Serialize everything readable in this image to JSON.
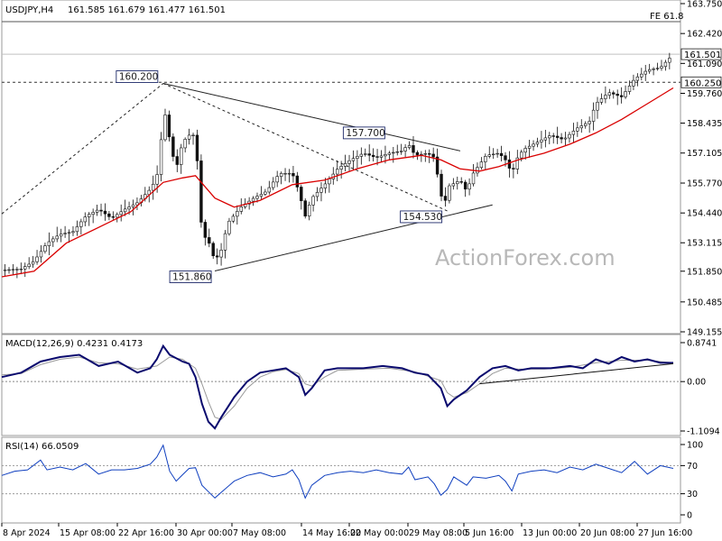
{
  "header": {
    "symbol": "USDJPY,H4",
    "ohlc": "161.585 161.679 161.477 161.501"
  },
  "watermark": "ActionForex.com",
  "chart_data": [
    {
      "type": "candlestick",
      "panel": "price",
      "ylim": [
        149.155,
        163.75
      ],
      "y_ticks": [
        "163.750",
        "162.420",
        "161.090",
        "159.760",
        "158.435",
        "157.105",
        "155.770",
        "154.440",
        "153.115",
        "151.850",
        "150.485",
        "149.155"
      ],
      "x_tick_labels": [
        "8 Apr 2024",
        "15 Apr 08:00",
        "22 Apr 16:00",
        "30 Apr 00:00",
        "7 May 08:00",
        "14 May 16:00",
        "22 May 00:00",
        "29 May 08:00",
        "5 Jun 16:00",
        "13 Jun 00:00",
        "20 Jun 08:00",
        "27 Jun 16:00"
      ],
      "last_price": "161.501",
      "fe_label": "FE 61.8",
      "fe_level": 162.95,
      "horizontal_level": {
        "label": "160.250",
        "value": 160.25
      },
      "point_annotations": [
        {
          "label": "160.200",
          "value": 160.2
        },
        {
          "label": "151.860",
          "value": 151.86
        },
        {
          "label": "157.700",
          "value": 157.7
        },
        {
          "label": "154.530",
          "value": 154.53
        }
      ],
      "close_path": [
        [
          0,
          151.9
        ],
        [
          3,
          151.95
        ],
        [
          5,
          152.3
        ],
        [
          7,
          153.1
        ],
        [
          9,
          153.5
        ],
        [
          11,
          153.6
        ],
        [
          13,
          154.3
        ],
        [
          15,
          154.6
        ],
        [
          17,
          154.2
        ],
        [
          19,
          154.6
        ],
        [
          21,
          154.9
        ],
        [
          23,
          155.5
        ],
        [
          24,
          156.0
        ],
        [
          25,
          158.5
        ],
        [
          25.5,
          159.0
        ],
        [
          26,
          157.6
        ],
        [
          27,
          156.4
        ],
        [
          28,
          157.6
        ],
        [
          29,
          157.9
        ],
        [
          30,
          157.9
        ],
        [
          31,
          153.5
        ],
        [
          32,
          153.2
        ],
        [
          33,
          152.3
        ],
        [
          34,
          152.8
        ],
        [
          35,
          154.0
        ],
        [
          37,
          154.7
        ],
        [
          39,
          155.1
        ],
        [
          41,
          155.4
        ],
        [
          43,
          156.2
        ],
        [
          45,
          156.2
        ],
        [
          46,
          155.4
        ],
        [
          47,
          154.3
        ],
        [
          48,
          155.1
        ],
        [
          50,
          155.7
        ],
        [
          52,
          156.4
        ],
        [
          54,
          156.8
        ],
        [
          56,
          157.1
        ],
        [
          58,
          156.9
        ],
        [
          60,
          157.1
        ],
        [
          62,
          157.2
        ],
        [
          63,
          157.5
        ],
        [
          64,
          157.0
        ],
        [
          66,
          157.1
        ],
        [
          67,
          156.9
        ],
        [
          68,
          155.3
        ],
        [
          68.5,
          154.6
        ],
        [
          69,
          155.6
        ],
        [
          71,
          155.9
        ],
        [
          72,
          155.4
        ],
        [
          73,
          156.2
        ],
        [
          75,
          157.0
        ],
        [
          77,
          157.1
        ],
        [
          78,
          156.8
        ],
        [
          79,
          156.2
        ],
        [
          80,
          157.0
        ],
        [
          81,
          157.3
        ],
        [
          83,
          157.6
        ],
        [
          85,
          157.9
        ],
        [
          87,
          157.7
        ],
        [
          89,
          158.2
        ],
        [
          91,
          158.5
        ],
        [
          92,
          159.3
        ],
        [
          94,
          159.8
        ],
        [
          96,
          159.6
        ],
        [
          98,
          160.4
        ],
        [
          100,
          160.8
        ],
        [
          102,
          160.9
        ],
        [
          103,
          161.2
        ],
        [
          104,
          161.5
        ]
      ],
      "ma_path": [
        [
          0,
          151.6
        ],
        [
          5,
          151.85
        ],
        [
          10,
          153.1
        ],
        [
          15,
          153.8
        ],
        [
          20,
          154.5
        ],
        [
          25,
          155.8
        ],
        [
          28,
          156.0
        ],
        [
          30,
          156.1
        ],
        [
          33,
          155.1
        ],
        [
          36,
          154.7
        ],
        [
          40,
          155.0
        ],
        [
          45,
          155.7
        ],
        [
          50,
          155.9
        ],
        [
          55,
          156.4
        ],
        [
          60,
          156.8
        ],
        [
          65,
          157.0
        ],
        [
          68,
          156.8
        ],
        [
          71,
          156.4
        ],
        [
          74,
          156.3
        ],
        [
          77,
          156.5
        ],
        [
          80,
          156.8
        ],
        [
          84,
          157.1
        ],
        [
          88,
          157.5
        ],
        [
          92,
          158.0
        ],
        [
          96,
          158.6
        ],
        [
          100,
          159.3
        ],
        [
          104,
          160.0
        ]
      ],
      "trendlines": [
        {
          "from": [
            25,
            160.2
          ],
          "to": [
            71,
            157.2
          ],
          "style": "solid"
        },
        {
          "from": [
            33,
            151.86
          ],
          "to": [
            76,
            154.8
          ],
          "style": "solid"
        },
        {
          "from": [
            0,
            154.4
          ],
          "to": [
            25,
            160.2
          ],
          "style": "dashed"
        },
        {
          "from": [
            25,
            160.2
          ],
          "to": [
            69,
            154.53
          ],
          "style": "dashed"
        }
      ]
    },
    {
      "type": "line",
      "panel": "macd",
      "label": "MACD(12,26,9) 0.4231 0.4173",
      "ylim": [
        -1.1094,
        0.8741
      ],
      "y_ticks": [
        "0.8741",
        "0.00",
        "-1.1094"
      ],
      "main_path": [
        [
          0,
          0.1
        ],
        [
          3,
          0.2
        ],
        [
          6,
          0.45
        ],
        [
          9,
          0.55
        ],
        [
          12,
          0.6
        ],
        [
          15,
          0.35
        ],
        [
          18,
          0.45
        ],
        [
          21,
          0.2
        ],
        [
          23,
          0.3
        ],
        [
          24,
          0.5
        ],
        [
          25,
          0.8
        ],
        [
          26,
          0.6
        ],
        [
          28,
          0.45
        ],
        [
          29,
          0.4
        ],
        [
          30,
          0.1
        ],
        [
          31,
          -0.5
        ],
        [
          32,
          -0.9
        ],
        [
          33,
          -1.05
        ],
        [
          34,
          -0.8
        ],
        [
          36,
          -0.35
        ],
        [
          38,
          0.0
        ],
        [
          40,
          0.2
        ],
        [
          42,
          0.25
        ],
        [
          44,
          0.3
        ],
        [
          46,
          0.1
        ],
        [
          47,
          -0.3
        ],
        [
          48,
          -0.15
        ],
        [
          50,
          0.25
        ],
        [
          52,
          0.3
        ],
        [
          56,
          0.3
        ],
        [
          59,
          0.35
        ],
        [
          62,
          0.3
        ],
        [
          64,
          0.2
        ],
        [
          66,
          0.15
        ],
        [
          68,
          -0.15
        ],
        [
          69,
          -0.55
        ],
        [
          70,
          -0.4
        ],
        [
          72,
          -0.2
        ],
        [
          74,
          0.1
        ],
        [
          76,
          0.3
        ],
        [
          78,
          0.35
        ],
        [
          80,
          0.25
        ],
        [
          82,
          0.3
        ],
        [
          85,
          0.3
        ],
        [
          88,
          0.35
        ],
        [
          90,
          0.3
        ],
        [
          92,
          0.5
        ],
        [
          94,
          0.4
        ],
        [
          96,
          0.55
        ],
        [
          98,
          0.45
        ],
        [
          100,
          0.5
        ],
        [
          102,
          0.42
        ],
        [
          104,
          0.42
        ]
      ],
      "signal_path": [
        [
          0,
          0.15
        ],
        [
          3,
          0.18
        ],
        [
          6,
          0.38
        ],
        [
          9,
          0.5
        ],
        [
          12,
          0.55
        ],
        [
          15,
          0.42
        ],
        [
          18,
          0.4
        ],
        [
          21,
          0.28
        ],
        [
          24,
          0.35
        ],
        [
          26,
          0.55
        ],
        [
          28,
          0.5
        ],
        [
          30,
          0.3
        ],
        [
          31,
          -0.05
        ],
        [
          32,
          -0.45
        ],
        [
          33,
          -0.8
        ],
        [
          34,
          -0.85
        ],
        [
          36,
          -0.55
        ],
        [
          38,
          -0.15
        ],
        [
          40,
          0.1
        ],
        [
          42,
          0.22
        ],
        [
          44,
          0.27
        ],
        [
          46,
          0.18
        ],
        [
          47,
          -0.05
        ],
        [
          48,
          -0.1
        ],
        [
          50,
          0.1
        ],
        [
          52,
          0.25
        ],
        [
          56,
          0.28
        ],
        [
          60,
          0.3
        ],
        [
          64,
          0.22
        ],
        [
          68,
          0.02
        ],
        [
          69,
          -0.25
        ],
        [
          70,
          -0.35
        ],
        [
          72,
          -0.25
        ],
        [
          74,
          -0.05
        ],
        [
          76,
          0.18
        ],
        [
          78,
          0.3
        ],
        [
          80,
          0.28
        ],
        [
          84,
          0.28
        ],
        [
          88,
          0.32
        ],
        [
          92,
          0.42
        ],
        [
          96,
          0.48
        ],
        [
          100,
          0.48
        ],
        [
          104,
          0.42
        ]
      ],
      "trendline": {
        "from": [
          74,
          -0.05
        ],
        "to": [
          104,
          0.4
        ]
      }
    },
    {
      "type": "line",
      "panel": "rsi",
      "label": "RSI(14) 66.0509",
      "ylim": [
        0,
        100
      ],
      "y_ticks": [
        "100",
        "70",
        "30",
        "0"
      ],
      "levels": [
        70,
        30
      ],
      "rsi_path": [
        [
          0,
          56
        ],
        [
          2,
          62
        ],
        [
          4,
          64
        ],
        [
          6,
          78
        ],
        [
          7,
          64
        ],
        [
          9,
          68
        ],
        [
          11,
          64
        ],
        [
          13,
          73
        ],
        [
          15,
          58
        ],
        [
          17,
          64
        ],
        [
          19,
          64
        ],
        [
          21,
          66
        ],
        [
          23,
          72
        ],
        [
          24,
          82
        ],
        [
          25,
          99
        ],
        [
          26,
          62
        ],
        [
          27,
          48
        ],
        [
          28,
          57
        ],
        [
          29,
          66
        ],
        [
          30,
          67
        ],
        [
          31,
          42
        ],
        [
          32,
          33
        ],
        [
          33,
          24
        ],
        [
          34,
          32
        ],
        [
          36,
          48
        ],
        [
          38,
          56
        ],
        [
          40,
          60
        ],
        [
          42,
          54
        ],
        [
          44,
          58
        ],
        [
          45,
          64
        ],
        [
          46,
          50
        ],
        [
          47,
          24
        ],
        [
          48,
          42
        ],
        [
          50,
          56
        ],
        [
          52,
          60
        ],
        [
          54,
          62
        ],
        [
          56,
          60
        ],
        [
          58,
          64
        ],
        [
          60,
          60
        ],
        [
          62,
          58
        ],
        [
          63,
          68
        ],
        [
          64,
          50
        ],
        [
          66,
          54
        ],
        [
          67,
          44
        ],
        [
          68,
          28
        ],
        [
          69,
          36
        ],
        [
          70,
          54
        ],
        [
          72,
          42
        ],
        [
          73,
          54
        ],
        [
          75,
          52
        ],
        [
          77,
          56
        ],
        [
          78,
          48
        ],
        [
          79,
          34
        ],
        [
          80,
          58
        ],
        [
          82,
          62
        ],
        [
          84,
          64
        ],
        [
          86,
          60
        ],
        [
          88,
          68
        ],
        [
          90,
          64
        ],
        [
          92,
          72
        ],
        [
          94,
          66
        ],
        [
          96,
          60
        ],
        [
          98,
          76
        ],
        [
          100,
          58
        ],
        [
          102,
          70
        ],
        [
          104,
          66
        ]
      ]
    }
  ]
}
